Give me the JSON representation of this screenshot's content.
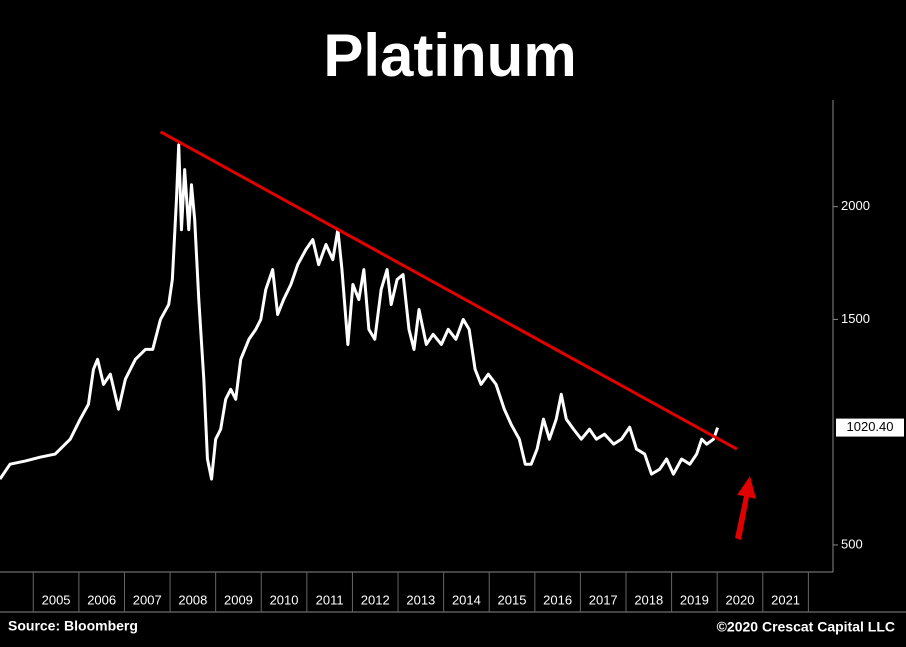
{
  "chart_data": {
    "type": "line",
    "title": "Platinum",
    "x": [
      2004.27,
      2004.49,
      2004.82,
      2005.15,
      2005.48,
      2005.81,
      2006.03,
      2006.21,
      2006.32,
      2006.41,
      2006.54,
      2006.69,
      2006.87,
      2007.02,
      2007.24,
      2007.46,
      2007.62,
      2007.79,
      2007.97,
      2008.05,
      2008.14,
      2008.19,
      2008.25,
      2008.32,
      2008.41,
      2008.47,
      2008.54,
      2008.63,
      2008.74,
      2008.82,
      2008.91,
      2009.0,
      2009.11,
      2009.22,
      2009.33,
      2009.44,
      2009.55,
      2009.73,
      2009.88,
      2009.99,
      2010.1,
      2010.25,
      2010.36,
      2010.49,
      2010.65,
      2010.8,
      2010.98,
      2011.13,
      2011.26,
      2011.42,
      2011.57,
      2011.68,
      2011.77,
      2011.9,
      2012.01,
      2012.14,
      2012.25,
      2012.36,
      2012.49,
      2012.63,
      2012.76,
      2012.85,
      2012.98,
      2013.11,
      2013.24,
      2013.35,
      2013.46,
      2013.62,
      2013.77,
      2013.95,
      2014.1,
      2014.27,
      2014.43,
      2014.56,
      2014.69,
      2014.82,
      2014.98,
      2015.15,
      2015.33,
      2015.48,
      2015.66,
      2015.79,
      2015.92,
      2016.05,
      2016.19,
      2016.32,
      2016.47,
      2016.58,
      2016.69,
      2016.85,
      2017.02,
      2017.2,
      2017.35,
      2017.53,
      2017.73,
      2017.9,
      2018.08,
      2018.23,
      2018.41,
      2018.56,
      2018.74,
      2018.89,
      2019.04,
      2019.22,
      2019.4,
      2019.55,
      2019.66,
      2019.77,
      2019.92,
      2020.01
    ],
    "series": [
      {
        "color": "#ffffff",
        "values": [
          792,
          858,
          872,
          889,
          903,
          969,
          1058,
          1124,
          1279,
          1323,
          1212,
          1257,
          1102,
          1235,
          1323,
          1367,
          1367,
          1500,
          1566,
          1677,
          2031,
          2274,
          1898,
          2164,
          1898,
          2097,
          1942,
          1588,
          1235,
          881,
          792,
          969,
          1013,
          1146,
          1190,
          1146,
          1323,
          1412,
          1456,
          1500,
          1633,
          1721,
          1522,
          1588,
          1655,
          1743,
          1810,
          1854,
          1743,
          1832,
          1765,
          1898,
          1721,
          1389,
          1655,
          1588,
          1721,
          1456,
          1412,
          1633,
          1721,
          1566,
          1677,
          1699,
          1456,
          1367,
          1544,
          1389,
          1434,
          1389,
          1456,
          1412,
          1500,
          1456,
          1279,
          1212,
          1257,
          1212,
          1102,
          1035,
          969,
          858,
          858,
          925,
          1058,
          969,
          1058,
          1168,
          1058,
          1013,
          969,
          1013,
          969,
          991,
          947,
          969,
          1022,
          925,
          903,
          814,
          836,
          881,
          814,
          881,
          858,
          903,
          969,
          947,
          969,
          1020.4
        ]
      }
    ],
    "last_label": {
      "value": 1020.4,
      "label": "1020.40"
    },
    "trendline": {
      "x": [
        2007.79,
        2020.43
      ],
      "y": [
        2332,
        925
      ],
      "color": "#e00000"
    },
    "xlim": [
      2004.27,
      2022.54
    ],
    "ylim": [
      380,
      2473
    ],
    "xticks": [
      {
        "value": 2005,
        "label": "2005"
      },
      {
        "value": 2006,
        "label": "2006"
      },
      {
        "value": 2007,
        "label": "2007"
      },
      {
        "value": 2008,
        "label": "2008"
      },
      {
        "value": 2009,
        "label": "2009"
      },
      {
        "value": 2010,
        "label": "2010"
      },
      {
        "value": 2011,
        "label": "2011"
      },
      {
        "value": 2012,
        "label": "2012"
      },
      {
        "value": 2013,
        "label": "2013"
      },
      {
        "value": 2014,
        "label": "2014"
      },
      {
        "value": 2015,
        "label": "2015"
      },
      {
        "value": 2016,
        "label": "2016"
      },
      {
        "value": 2017,
        "label": "2017"
      },
      {
        "value": 2018,
        "label": "2018"
      },
      {
        "value": 2019,
        "label": "2019"
      },
      {
        "value": 2020,
        "label": "2020"
      },
      {
        "value": 2021,
        "label": "2021"
      }
    ],
    "yticks": [
      500,
      1500,
      2000
    ],
    "source": "Source: Bloomberg",
    "copyright": "©2020 Crescat Capital LLC"
  }
}
